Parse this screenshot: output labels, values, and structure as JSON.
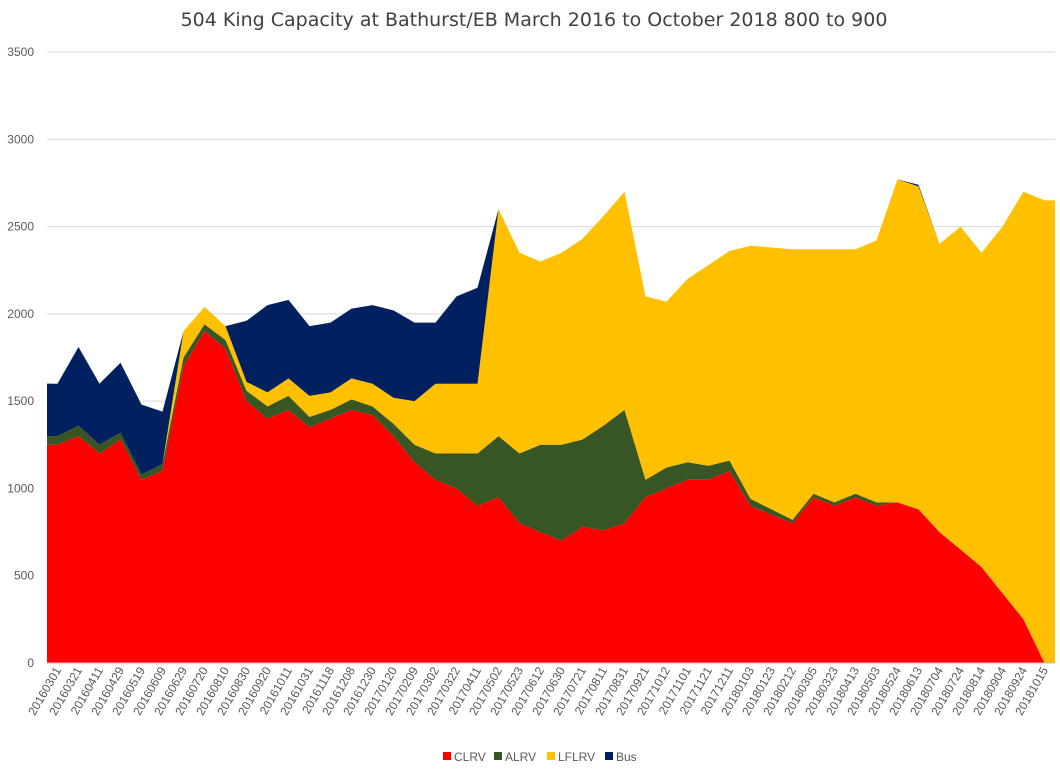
{
  "chart_data": {
    "type": "area",
    "stacked": true,
    "title": "504 King Capacity at Bathurst/EB March 2016 to October 2018  800 to 900",
    "xlabel": "",
    "ylabel": "",
    "ylim": [
      0,
      3500
    ],
    "yticks": [
      0,
      500,
      1000,
      1500,
      2000,
      2500,
      3000,
      3500
    ],
    "grid": true,
    "legend_position": "bottom",
    "categories": [
      "20160301",
      "20160321",
      "20160411",
      "20160429",
      "20160519",
      "20160609",
      "20160629",
      "20160720",
      "20160810",
      "20160830",
      "20160920",
      "20161011",
      "20161031",
      "20161118",
      "20161208",
      "20161230",
      "20170120",
      "20170209",
      "20170302",
      "20170322",
      "20170411",
      "20170502",
      "20170523",
      "20170612",
      "20170630",
      "20170721",
      "20170811",
      "20170831",
      "20170921",
      "20171012",
      "20171101",
      "20171121",
      "20171211",
      "20180103",
      "20180123",
      "20180212",
      "20180305",
      "20180323",
      "20180413",
      "20180503",
      "20180524",
      "20180613",
      "20180704",
      "20180724",
      "20180814",
      "20180904",
      "20180924",
      "20181015"
    ],
    "series": [
      {
        "name": "CLRV",
        "color": "#ff0000",
        "values": [
          1250,
          1300,
          1200,
          1280,
          1050,
          1100,
          1700,
          1900,
          1800,
          1500,
          1400,
          1450,
          1350,
          1400,
          1450,
          1420,
          1300,
          1150,
          1050,
          1000,
          900,
          950,
          800,
          750,
          700,
          780,
          760,
          800,
          950,
          1000,
          1050,
          1050,
          1100,
          900,
          850,
          800,
          950,
          900,
          950,
          900,
          920,
          880,
          750,
          650,
          550,
          400,
          250,
          0
        ]
      },
      {
        "name": "ALRV",
        "color": "#375623",
        "values": [
          50,
          60,
          50,
          40,
          30,
          40,
          50,
          40,
          50,
          60,
          70,
          80,
          60,
          50,
          60,
          50,
          70,
          100,
          150,
          200,
          300,
          350,
          400,
          500,
          550,
          500,
          600,
          650,
          100,
          120,
          100,
          80,
          60,
          40,
          30,
          20,
          20,
          20,
          20,
          20,
          0,
          0,
          0,
          0,
          0,
          0,
          0,
          0
        ]
      },
      {
        "name": "LFLRV",
        "color": "#ffc000",
        "values": [
          0,
          0,
          0,
          0,
          0,
          0,
          150,
          100,
          80,
          50,
          80,
          100,
          120,
          100,
          120,
          130,
          150,
          250,
          400,
          400,
          400,
          1300,
          1150,
          1050,
          1100,
          1150,
          1200,
          1250,
          1050,
          950,
          1050,
          1150,
          1200,
          1450,
          1500,
          1550,
          1400,
          1450,
          1400,
          1500,
          1850,
          1850,
          1650,
          1850,
          1800,
          2100,
          2450,
          2650
        ]
      },
      {
        "name": "Bus",
        "color": "#002060",
        "values": [
          300,
          450,
          350,
          400,
          400,
          300,
          0,
          0,
          0,
          350,
          500,
          450,
          400,
          400,
          400,
          450,
          500,
          450,
          350,
          500,
          550,
          0,
          0,
          0,
          0,
          0,
          0,
          0,
          0,
          0,
          0,
          0,
          0,
          0,
          0,
          0,
          0,
          0,
          0,
          0,
          0,
          10,
          0,
          0,
          0,
          0,
          0,
          0
        ]
      }
    ]
  }
}
